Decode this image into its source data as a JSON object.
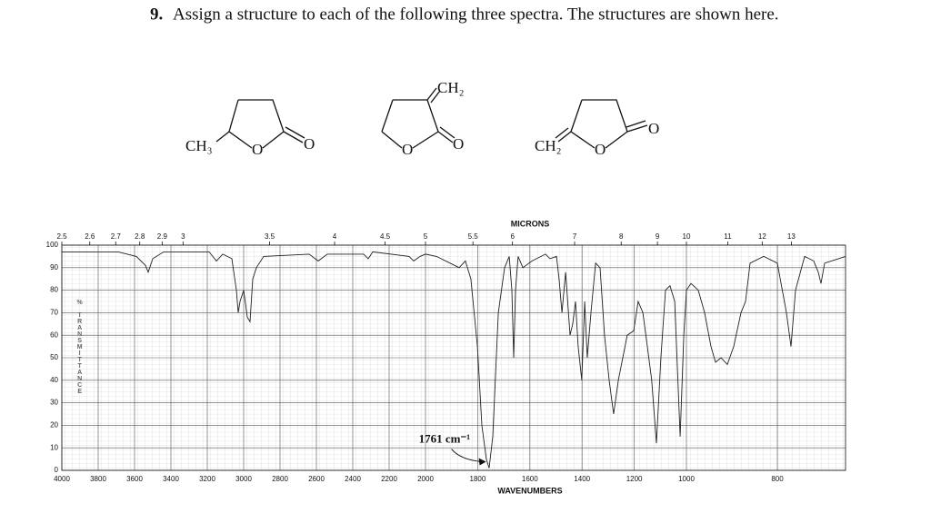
{
  "question": {
    "number": "9.",
    "text": "Assign a structure to each of the following three spectra. The structures are shown here."
  },
  "structures": [
    {
      "labels": [
        "CH₃",
        "O",
        "O"
      ]
    },
    {
      "labels": [
        "CH₂",
        "O",
        "O"
      ]
    },
    {
      "labels": [
        "CH₂",
        "O",
        "O"
      ]
    }
  ],
  "chart_data": {
    "type": "line",
    "xlabel": "WAVENUMBERS",
    "x2label": "MICRONS",
    "ylabel": "% TRANSMITTANCE",
    "color": "#222222",
    "grid": true,
    "xlim": [
      4000,
      650
    ],
    "xbreaks": [
      2000,
      1000
    ],
    "ylim": [
      0,
      100
    ],
    "yticks": [
      0,
      10,
      20,
      30,
      40,
      50,
      60,
      70,
      80,
      90,
      100
    ],
    "xticks": [
      4000,
      3800,
      3600,
      3400,
      3200,
      3000,
      2800,
      2600,
      2400,
      2200,
      2000,
      1800,
      1600,
      1400,
      1200,
      1000,
      800
    ],
    "x2ticks": [
      2.5,
      2.6,
      2.7,
      2.8,
      2.9,
      3,
      3.5,
      4,
      4.5,
      5,
      5.5,
      6,
      7,
      8,
      9,
      10,
      11,
      12,
      13
    ],
    "annotation": {
      "text": "1761 cm⁻¹",
      "x": 1761,
      "y": 3
    },
    "x": [
      4000,
      3690,
      3590,
      3540,
      3525,
      3500,
      3440,
      3190,
      3150,
      3115,
      3065,
      3040,
      3030,
      3020,
      3000,
      2980,
      2965,
      2950,
      2930,
      2890,
      2640,
      2590,
      2540,
      2340,
      2315,
      2290,
      2090,
      2065,
      2030,
      2000,
      1958,
      1906,
      1871,
      1847,
      1826,
      1801,
      1784,
      1767,
      1756,
      1742,
      1721,
      1697,
      1679,
      1669,
      1662,
      1655,
      1645,
      1627,
      1592,
      1540,
      1523,
      1498,
      1488,
      1477,
      1463,
      1446,
      1436,
      1425,
      1415,
      1401,
      1390,
      1380,
      1366,
      1348,
      1331,
      1314,
      1296,
      1279,
      1261,
      1244,
      1227,
      1202,
      1185,
      1167,
      1150,
      1133,
      1115,
      1098,
      1080,
      1063,
      1045,
      1024,
      1010,
      1000,
      990,
      974,
      960,
      946,
      936,
      924,
      910,
      896,
      880,
      870,
      860,
      830,
      800,
      780,
      770,
      760,
      740,
      720,
      710,
      704,
      696,
      650
    ],
    "values": [
      97,
      97,
      95,
      91,
      88,
      94,
      97,
      97,
      93,
      96,
      94,
      80,
      70,
      75,
      80,
      68,
      66,
      85,
      90,
      95,
      96,
      93,
      96,
      96,
      94,
      97,
      95,
      93,
      95,
      96,
      95,
      92,
      90,
      93,
      85,
      55,
      20,
      5,
      1,
      15,
      70,
      90,
      95,
      80,
      50,
      80,
      95,
      90,
      93,
      96,
      94,
      95,
      85,
      70,
      88,
      60,
      65,
      75,
      55,
      40,
      75,
      50,
      70,
      92,
      90,
      60,
      40,
      25,
      40,
      50,
      60,
      62,
      75,
      70,
      55,
      40,
      12,
      50,
      80,
      82,
      75,
      15,
      60,
      80,
      83,
      80,
      70,
      55,
      48,
      50,
      47,
      55,
      70,
      75,
      92,
      95,
      92,
      70,
      55,
      80,
      95,
      93,
      88,
      83,
      92,
      95
    ]
  }
}
